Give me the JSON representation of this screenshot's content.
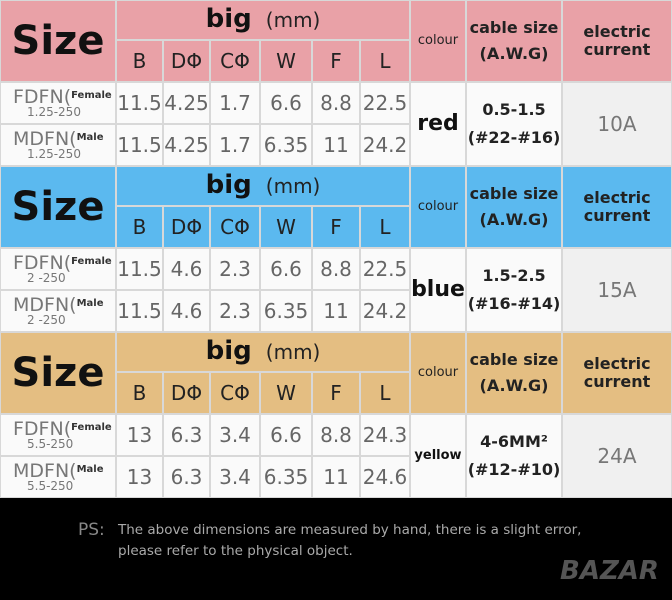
{
  "sections": [
    {
      "size_label": "Size",
      "big": "big",
      "unit": "(mm)",
      "columns": [
        "B",
        "DΦ",
        "CΦ",
        "W",
        "F",
        "L"
      ],
      "colour_header": "colour",
      "cable_header": [
        "cable size",
        "(A.W.G)"
      ],
      "current_header": [
        "electric",
        "current"
      ],
      "rows": [
        {
          "name": "FDFN(",
          "gender": "Female",
          "spec": "1.25-250",
          "values": [
            "11.5",
            "4.25",
            "1.7",
            "6.6",
            "8.8",
            "22.5"
          ]
        },
        {
          "name": "MDFN(",
          "gender": "Male",
          "spec": "1.25-250",
          "values": [
            "11.5",
            "4.25",
            "1.7",
            "6.35",
            "11",
            "24.2"
          ]
        }
      ],
      "colour": "red",
      "cable": [
        "0.5-1.5",
        "(#22-#16)"
      ],
      "current": "10A"
    },
    {
      "size_label": "Size",
      "big": "big",
      "unit": "(mm)",
      "columns": [
        "B",
        "DΦ",
        "CΦ",
        "W",
        "F",
        "L"
      ],
      "colour_header": "colour",
      "cable_header": [
        "cable size",
        "(A.W.G)"
      ],
      "current_header": [
        "electric",
        "current"
      ],
      "rows": [
        {
          "name": "FDFN(",
          "gender": "Female",
          "spec": "2 -250",
          "values": [
            "11.5",
            "4.6",
            "2.3",
            "6.6",
            "8.8",
            "22.5"
          ]
        },
        {
          "name": "MDFN(",
          "gender": "Male",
          "spec": "2 -250",
          "values": [
            "11.5",
            "4.6",
            "2.3",
            "6.35",
            "11",
            "24.2"
          ]
        }
      ],
      "colour": "blue",
      "cable": [
        "1.5-2.5",
        "(#16-#14)"
      ],
      "current": "15A"
    },
    {
      "size_label": "Size",
      "big": "big",
      "unit": "(mm)",
      "columns": [
        "B",
        "DΦ",
        "CΦ",
        "W",
        "F",
        "L"
      ],
      "colour_header": "colour",
      "cable_header": [
        "cable size",
        "(A.W.G)"
      ],
      "current_header": [
        "electric",
        "current"
      ],
      "rows": [
        {
          "name": "FDFN(",
          "gender": "Female",
          "spec": "5.5-250",
          "values": [
            "13",
            "6.3",
            "3.4",
            "6.6",
            "8.8",
            "24.3"
          ]
        },
        {
          "name": "MDFN(",
          "gender": "Male",
          "spec": "5.5-250",
          "values": [
            "13",
            "6.3",
            "3.4",
            "6.35",
            "11",
            "24.6"
          ]
        }
      ],
      "colour": "yellow",
      "cable": [
        "4-6MM²",
        "(#12-#10)"
      ],
      "current": "24A"
    }
  ],
  "footer": {
    "prefix": "PS:",
    "lines": [
      "The above dimensions are measured by hand, there is a slight error,",
      "please refer to the physical object."
    ]
  },
  "watermark": "BAZAR"
}
